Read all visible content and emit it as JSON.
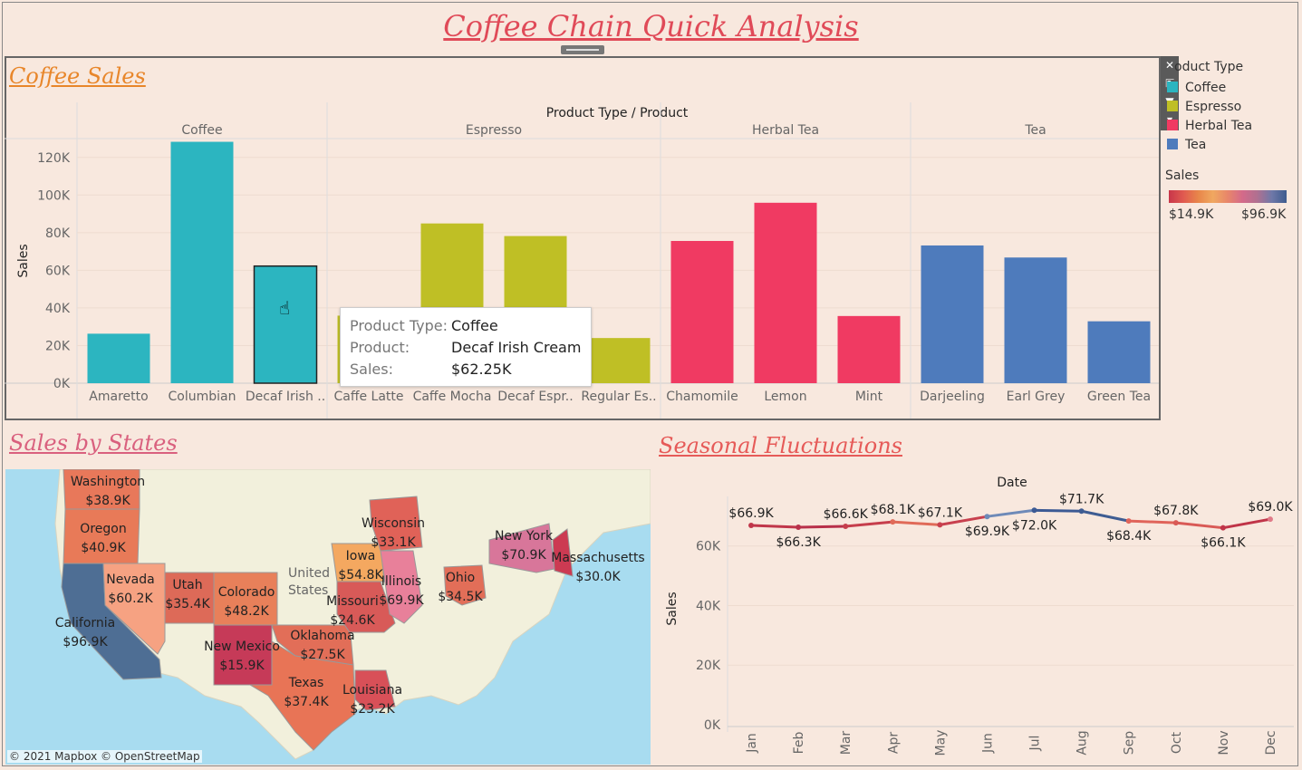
{
  "dashboard_title": "Coffee Chain Quick Analysis",
  "sales_panel": {
    "title": "Coffee Sales",
    "header": "Product Type / Product",
    "groups": [
      "Coffee",
      "Espresso",
      "Herbal Tea",
      "Tea"
    ],
    "ylabel": "Sales"
  },
  "toolbar": {
    "close_icon": "close-icon",
    "popout_icon": "popout-icon",
    "filter_icon": "filter-icon",
    "more_icon": "more-icon"
  },
  "legend": {
    "title": "oduct Type",
    "items": [
      {
        "label": "Coffee",
        "color": "#2cb5c0"
      },
      {
        "label": "Espresso",
        "color": "#bfbf25"
      },
      {
        "label": "Herbal Tea",
        "color": "#f03a62"
      },
      {
        "label": "Tea",
        "color": "#4e7bbc"
      }
    ],
    "sales_title": "Sales",
    "sales_min": "$14.9K",
    "sales_max": "$96.9K"
  },
  "tooltip": {
    "type_label": "Product Type:",
    "type_value": "Coffee",
    "product_label": "Product:",
    "product_value": "Decaf Irish Cream",
    "sales_label": "Sales:",
    "sales_value": "$62.25K"
  },
  "map_panel": {
    "title": "Sales by States",
    "attribution": "© 2021 Mapbox © OpenStreetMap",
    "country_label_1": "United",
    "country_label_2": "States",
    "states": [
      {
        "name": "Washington",
        "value": "$38.9K"
      },
      {
        "name": "Oregon",
        "value": "$40.9K"
      },
      {
        "name": "California",
        "value": "$96.9K"
      },
      {
        "name": "Nevada",
        "value": "$60.2K"
      },
      {
        "name": "Utah",
        "value": "$35.4K"
      },
      {
        "name": "Colorado",
        "value": "$48.2K"
      },
      {
        "name": "New Mexico",
        "value": "$15.9K"
      },
      {
        "name": "Oklahoma",
        "value": "$27.5K"
      },
      {
        "name": "Texas",
        "value": "$37.4K"
      },
      {
        "name": "Louisiana",
        "value": "$23.2K"
      },
      {
        "name": "Missouri",
        "value": "$24.6K"
      },
      {
        "name": "Iowa",
        "value": "$54.8K"
      },
      {
        "name": "Illinois",
        "value": "$69.9K"
      },
      {
        "name": "Wisconsin",
        "value": "$33.1K"
      },
      {
        "name": "Ohio",
        "value": "$34.5K"
      },
      {
        "name": "New York",
        "value": "$70.9K"
      },
      {
        "name": "Massachusetts",
        "value": "$30.0K"
      }
    ]
  },
  "seasonal_panel": {
    "title": "Seasonal Fluctuations",
    "header": "Date",
    "ylabel": "Sales"
  },
  "chart_data": [
    {
      "type": "bar",
      "title": "Coffee Sales",
      "xlabel": "Product Type / Product",
      "ylabel": "Sales",
      "ylim": [
        0,
        130000
      ],
      "yticks": [
        {
          "value": 0,
          "label": "0K"
        },
        {
          "value": 20000,
          "label": "20K"
        },
        {
          "value": 40000,
          "label": "40K"
        },
        {
          "value": 60000,
          "label": "60K"
        },
        {
          "value": 80000,
          "label": "80K"
        },
        {
          "value": 100000,
          "label": "100K"
        },
        {
          "value": 120000,
          "label": "120K"
        }
      ],
      "categories": [
        {
          "group": "Coffee",
          "label": "Amaretto",
          "value": 26300,
          "color": "#2cb5c0"
        },
        {
          "group": "Coffee",
          "label": "Columbian",
          "value": 128300,
          "color": "#2cb5c0"
        },
        {
          "group": "Coffee",
          "label": "Decaf Irish ..",
          "value": 62250,
          "color": "#2cb5c0",
          "highlighted": true
        },
        {
          "group": "Espresso",
          "label": "Caffe Latte",
          "value": 35900,
          "color": "#bfbf25"
        },
        {
          "group": "Espresso",
          "label": "Caffe Mocha",
          "value": 84900,
          "color": "#bfbf25"
        },
        {
          "group": "Espresso",
          "label": "Decaf Espr..",
          "value": 78200,
          "color": "#bfbf25"
        },
        {
          "group": "Espresso",
          "label": "Regular Es..",
          "value": 24000,
          "color": "#bfbf25"
        },
        {
          "group": "Herbal Tea",
          "label": "Chamomile",
          "value": 75600,
          "color": "#f03a62"
        },
        {
          "group": "Herbal Tea",
          "label": "Lemon",
          "value": 95900,
          "color": "#f03a62"
        },
        {
          "group": "Herbal Tea",
          "label": "Mint",
          "value": 35700,
          "color": "#f03a62"
        },
        {
          "group": "Tea",
          "label": "Darjeeling",
          "value": 73200,
          "color": "#4e7bbc"
        },
        {
          "group": "Tea",
          "label": "Earl Grey",
          "value": 66800,
          "color": "#4e7bbc"
        },
        {
          "group": "Tea",
          "label": "Green Tea",
          "value": 32900,
          "color": "#4e7bbc"
        }
      ]
    },
    {
      "type": "line",
      "title": "Seasonal Fluctuations",
      "xlabel": "Date",
      "ylabel": "Sales",
      "ylim": [
        0,
        73000
      ],
      "yticks": [
        {
          "value": 0,
          "label": "0K"
        },
        {
          "value": 20000,
          "label": "20K"
        },
        {
          "value": 40000,
          "label": "40K"
        },
        {
          "value": 60000,
          "label": "60K"
        }
      ],
      "x": [
        "Jan",
        "Feb",
        "Mar",
        "Apr",
        "May",
        "Jun",
        "Jul",
        "Aug",
        "Sep",
        "Oct",
        "Nov",
        "Dec"
      ],
      "values": [
        66900,
        66300,
        66600,
        68100,
        67100,
        69900,
        72000,
        71700,
        68400,
        67800,
        66100,
        69000
      ],
      "labels": [
        "$66.9K",
        "$66.3K",
        "$66.6K",
        "$68.1K",
        "$67.1K",
        "$69.9K",
        "$72.0K",
        "$71.7K",
        "$68.4K",
        "$67.8K",
        "$66.1K",
        "$69.0K"
      ]
    }
  ]
}
